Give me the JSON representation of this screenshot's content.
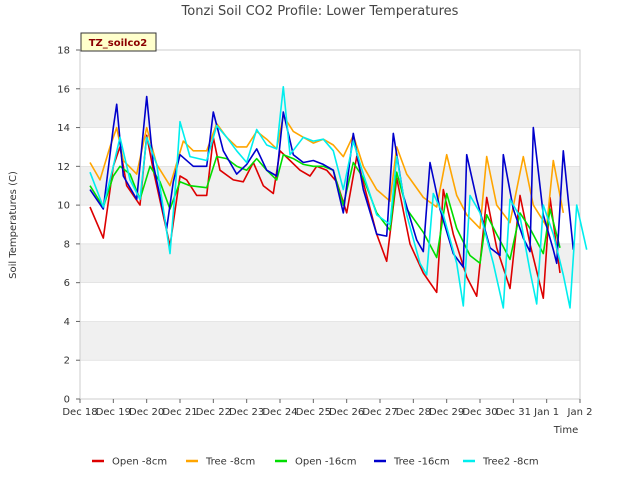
{
  "chart_data": {
    "type": "line",
    "title": "Tonzi Soil CO2 Profile: Lower Temperatures",
    "xlabel": "Time",
    "ylabel": "Soil Temperatures (C)",
    "ylim": [
      0,
      18
    ],
    "yticks": [
      0,
      2,
      4,
      6,
      8,
      10,
      12,
      14,
      16,
      18
    ],
    "xlim": [
      0,
      15
    ],
    "xticks": [
      {
        "x": 0,
        "label": "Dec 18"
      },
      {
        "x": 1,
        "label": "Dec 19"
      },
      {
        "x": 2,
        "label": "Dec 20"
      },
      {
        "x": 3,
        "label": "Dec 21"
      },
      {
        "x": 4,
        "label": "Dec 22"
      },
      {
        "x": 5,
        "label": "Dec 23"
      },
      {
        "x": 6,
        "label": "Dec 24"
      },
      {
        "x": 7,
        "label": "Dec 25"
      },
      {
        "x": 8,
        "label": "Dec 26"
      },
      {
        "x": 9,
        "label": "Dec 27"
      },
      {
        "x": 10,
        "label": "Dec 28"
      },
      {
        "x": 11,
        "label": "Dec 29"
      },
      {
        "x": 12,
        "label": "Dec 30"
      },
      {
        "x": 13,
        "label": "Dec 31"
      },
      {
        "x": 14,
        "label": "Jan 1"
      },
      {
        "x": 15,
        "label": "Jan 2"
      }
    ],
    "grid": "horizontal bands",
    "legend_position": "bottom",
    "tag": "TZ_soilco2",
    "series": [
      {
        "name": "Open -8cm",
        "color": "#dd0000",
        "points": [
          [
            0.3,
            9.9
          ],
          [
            0.7,
            8.3
          ],
          [
            1.0,
            12.0
          ],
          [
            1.2,
            13.0
          ],
          [
            1.4,
            11.0
          ],
          [
            1.8,
            10.0
          ],
          [
            2.0,
            13.6
          ],
          [
            2.2,
            11.8
          ],
          [
            2.7,
            7.9
          ],
          [
            3.0,
            11.5
          ],
          [
            3.2,
            11.3
          ],
          [
            3.5,
            10.5
          ],
          [
            3.8,
            10.5
          ],
          [
            4.0,
            13.5
          ],
          [
            4.2,
            11.8
          ],
          [
            4.6,
            11.3
          ],
          [
            4.9,
            11.2
          ],
          [
            5.2,
            12.2
          ],
          [
            5.5,
            11.0
          ],
          [
            5.8,
            10.6
          ],
          [
            6.0,
            12.8
          ],
          [
            6.3,
            12.3
          ],
          [
            6.6,
            11.8
          ],
          [
            6.9,
            11.5
          ],
          [
            7.1,
            12.0
          ],
          [
            7.4,
            11.8
          ],
          [
            7.7,
            11.2
          ],
          [
            8.0,
            9.6
          ],
          [
            8.3,
            12.5
          ],
          [
            8.6,
            10.5
          ],
          [
            8.9,
            8.5
          ],
          [
            9.2,
            7.1
          ],
          [
            9.5,
            11.4
          ],
          [
            9.9,
            8.0
          ],
          [
            10.3,
            6.5
          ],
          [
            10.7,
            5.5
          ],
          [
            10.9,
            10.8
          ],
          [
            11.2,
            8.5
          ],
          [
            11.6,
            6.3
          ],
          [
            11.9,
            5.3
          ],
          [
            12.2,
            10.4
          ],
          [
            12.5,
            7.8
          ],
          [
            12.9,
            5.7
          ],
          [
            13.2,
            10.5
          ],
          [
            13.5,
            8.0
          ],
          [
            13.9,
            5.2
          ],
          [
            14.1,
            10.4
          ],
          [
            14.4,
            6.5
          ]
        ]
      },
      {
        "name": "Tree -8cm",
        "color": "#ffa500",
        "points": [
          [
            0.3,
            12.2
          ],
          [
            0.6,
            11.3
          ],
          [
            0.9,
            13.0
          ],
          [
            1.1,
            14.0
          ],
          [
            1.3,
            12.3
          ],
          [
            1.7,
            11.6
          ],
          [
            2.0,
            14.0
          ],
          [
            2.3,
            12.1
          ],
          [
            2.7,
            11.0
          ],
          [
            3.1,
            13.3
          ],
          [
            3.4,
            12.8
          ],
          [
            3.8,
            12.8
          ],
          [
            4.1,
            14.2
          ],
          [
            4.4,
            13.5
          ],
          [
            4.7,
            13.0
          ],
          [
            5.0,
            13.0
          ],
          [
            5.3,
            13.8
          ],
          [
            5.6,
            13.4
          ],
          [
            5.9,
            12.9
          ],
          [
            6.1,
            14.6
          ],
          [
            6.4,
            13.8
          ],
          [
            6.7,
            13.5
          ],
          [
            7.0,
            13.2
          ],
          [
            7.3,
            13.4
          ],
          [
            7.6,
            13.1
          ],
          [
            7.9,
            12.5
          ],
          [
            8.2,
            13.6
          ],
          [
            8.5,
            12.0
          ],
          [
            8.9,
            10.8
          ],
          [
            9.3,
            10.2
          ],
          [
            9.5,
            13.0
          ],
          [
            9.8,
            11.6
          ],
          [
            10.3,
            10.4
          ],
          [
            10.7,
            9.9
          ],
          [
            11.0,
            12.6
          ],
          [
            11.3,
            10.5
          ],
          [
            11.6,
            9.5
          ],
          [
            12.0,
            8.8
          ],
          [
            12.2,
            12.5
          ],
          [
            12.5,
            10.0
          ],
          [
            12.9,
            9.1
          ],
          [
            13.3,
            12.5
          ],
          [
            13.6,
            10.0
          ],
          [
            14.0,
            8.9
          ],
          [
            14.2,
            12.3
          ],
          [
            14.5,
            9.6
          ]
        ]
      },
      {
        "name": "Open -16cm",
        "color": "#00dd00",
        "points": [
          [
            0.3,
            11.0
          ],
          [
            0.7,
            9.9
          ],
          [
            1.0,
            11.5
          ],
          [
            1.2,
            12.0
          ],
          [
            1.5,
            11.6
          ],
          [
            1.8,
            10.3
          ],
          [
            2.1,
            12.0
          ],
          [
            2.4,
            11.2
          ],
          [
            2.7,
            9.8
          ],
          [
            3.0,
            11.2
          ],
          [
            3.3,
            11.0
          ],
          [
            3.8,
            10.9
          ],
          [
            4.1,
            12.5
          ],
          [
            4.4,
            12.4
          ],
          [
            4.7,
            12.0
          ],
          [
            5.0,
            11.8
          ],
          [
            5.3,
            12.4
          ],
          [
            5.6,
            11.8
          ],
          [
            5.9,
            11.3
          ],
          [
            6.1,
            12.6
          ],
          [
            6.4,
            12.4
          ],
          [
            6.7,
            12.1
          ],
          [
            7.0,
            12.0
          ],
          [
            7.3,
            12.0
          ],
          [
            7.6,
            11.8
          ],
          [
            7.9,
            10.0
          ],
          [
            8.2,
            12.2
          ],
          [
            8.5,
            11.4
          ],
          [
            8.9,
            9.6
          ],
          [
            9.3,
            8.7
          ],
          [
            9.5,
            11.7
          ],
          [
            9.8,
            9.8
          ],
          [
            10.3,
            8.6
          ],
          [
            10.7,
            7.3
          ],
          [
            11.0,
            10.6
          ],
          [
            11.3,
            8.8
          ],
          [
            11.7,
            7.4
          ],
          [
            12.0,
            7.0
          ],
          [
            12.2,
            9.5
          ],
          [
            12.5,
            8.5
          ],
          [
            12.9,
            7.2
          ],
          [
            13.2,
            9.6
          ],
          [
            13.5,
            8.8
          ],
          [
            13.9,
            7.5
          ],
          [
            14.1,
            9.8
          ],
          [
            14.4,
            7.8
          ]
        ]
      },
      {
        "name": "Tree -16cm",
        "color": "#0000cc",
        "points": [
          [
            0.3,
            10.8
          ],
          [
            0.7,
            9.8
          ],
          [
            1.0,
            14.0
          ],
          [
            1.1,
            15.2
          ],
          [
            1.3,
            11.5
          ],
          [
            1.7,
            10.3
          ],
          [
            2.0,
            15.6
          ],
          [
            2.2,
            12.1
          ],
          [
            2.6,
            8.8
          ],
          [
            2.8,
            11.2
          ],
          [
            3.0,
            12.6
          ],
          [
            3.4,
            12.0
          ],
          [
            3.8,
            12.0
          ],
          [
            4.0,
            14.8
          ],
          [
            4.3,
            12.8
          ],
          [
            4.7,
            11.6
          ],
          [
            5.0,
            12.1
          ],
          [
            5.3,
            12.9
          ],
          [
            5.6,
            11.8
          ],
          [
            5.9,
            11.5
          ],
          [
            6.1,
            14.8
          ],
          [
            6.4,
            12.6
          ],
          [
            6.7,
            12.2
          ],
          [
            7.0,
            12.3
          ],
          [
            7.3,
            12.1
          ],
          [
            7.6,
            11.8
          ],
          [
            7.9,
            9.6
          ],
          [
            8.2,
            13.7
          ],
          [
            8.5,
            10.8
          ],
          [
            8.9,
            8.5
          ],
          [
            9.2,
            8.4
          ],
          [
            9.4,
            13.7
          ],
          [
            9.7,
            10.5
          ],
          [
            10.1,
            8.2
          ],
          [
            10.3,
            7.6
          ],
          [
            10.5,
            12.2
          ],
          [
            10.8,
            9.8
          ],
          [
            11.2,
            7.5
          ],
          [
            11.5,
            6.8
          ],
          [
            11.6,
            12.6
          ],
          [
            11.9,
            10.3
          ],
          [
            12.3,
            7.8
          ],
          [
            12.6,
            7.4
          ],
          [
            12.7,
            12.6
          ],
          [
            13.0,
            9.8
          ],
          [
            13.3,
            8.3
          ],
          [
            13.5,
            7.6
          ],
          [
            13.6,
            14.0
          ],
          [
            13.9,
            9.5
          ],
          [
            14.2,
            7.7
          ],
          [
            14.3,
            7.0
          ],
          [
            14.5,
            12.8
          ],
          [
            14.8,
            7.7
          ]
        ]
      },
      {
        "name": "Tree2 -8cm",
        "color": "#00eeee",
        "points": [
          [
            0.3,
            11.7
          ],
          [
            0.7,
            9.9
          ],
          [
            1.0,
            12.0
          ],
          [
            1.2,
            13.5
          ],
          [
            1.5,
            11.3
          ],
          [
            1.8,
            10.3
          ],
          [
            2.0,
            13.5
          ],
          [
            2.3,
            12.1
          ],
          [
            2.7,
            7.5
          ],
          [
            2.9,
            11.8
          ],
          [
            3.0,
            14.3
          ],
          [
            3.3,
            12.5
          ],
          [
            3.8,
            12.3
          ],
          [
            4.1,
            14.1
          ],
          [
            4.4,
            13.5
          ],
          [
            4.7,
            12.8
          ],
          [
            5.0,
            12.2
          ],
          [
            5.3,
            13.9
          ],
          [
            5.6,
            13.1
          ],
          [
            5.9,
            12.9
          ],
          [
            6.1,
            16.1
          ],
          [
            6.3,
            12.6
          ],
          [
            6.7,
            13.5
          ],
          [
            7.0,
            13.3
          ],
          [
            7.3,
            13.4
          ],
          [
            7.6,
            12.8
          ],
          [
            7.9,
            10.8
          ],
          [
            8.2,
            13.3
          ],
          [
            8.5,
            11.6
          ],
          [
            8.9,
            9.5
          ],
          [
            9.3,
            9.0
          ],
          [
            9.5,
            12.5
          ],
          [
            9.8,
            9.5
          ],
          [
            10.2,
            7.0
          ],
          [
            10.4,
            6.4
          ],
          [
            10.6,
            10.6
          ],
          [
            10.9,
            9.5
          ],
          [
            11.3,
            7.0
          ],
          [
            11.5,
            4.8
          ],
          [
            11.7,
            10.5
          ],
          [
            12.0,
            9.6
          ],
          [
            12.4,
            7.0
          ],
          [
            12.7,
            4.7
          ],
          [
            12.9,
            10.3
          ],
          [
            13.2,
            9.4
          ],
          [
            13.5,
            6.6
          ],
          [
            13.7,
            4.9
          ],
          [
            13.9,
            10.0
          ],
          [
            14.2,
            8.5
          ],
          [
            14.5,
            6.4
          ],
          [
            14.7,
            4.7
          ],
          [
            14.9,
            10.0
          ],
          [
            15.2,
            7.7
          ]
        ]
      }
    ]
  }
}
